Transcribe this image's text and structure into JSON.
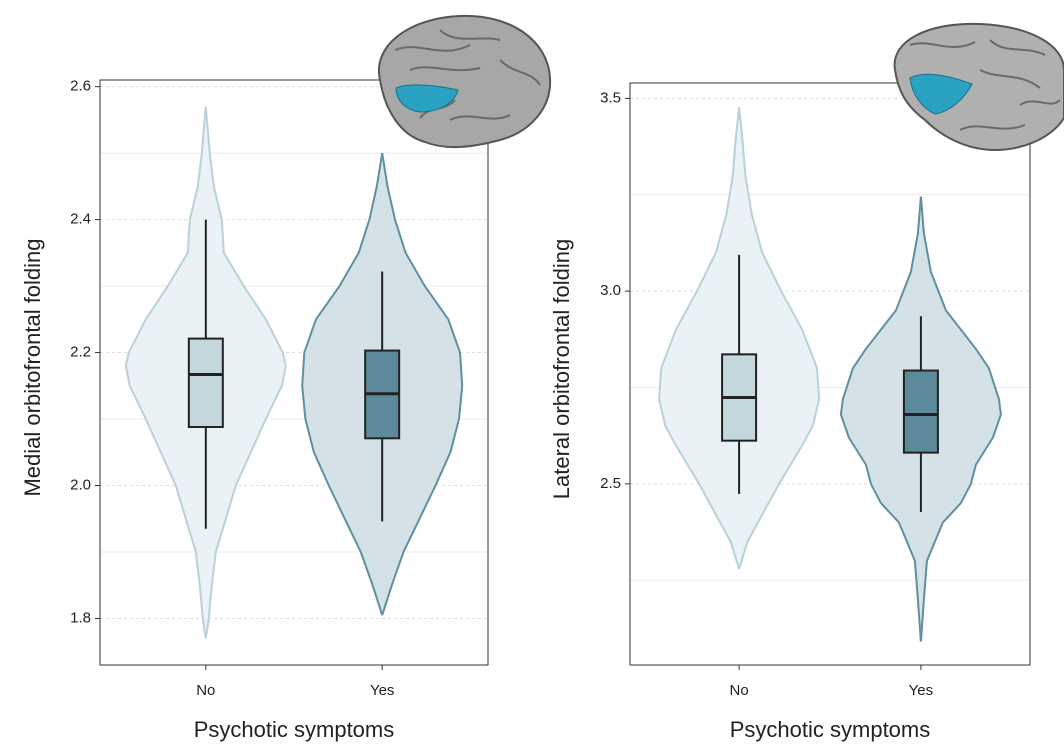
{
  "chart_data": [
    {
      "type": "violin",
      "y_label": "Medial orbitofrontal folding",
      "x_label": "Psychotic symptoms",
      "categories": [
        "No",
        "Yes"
      ],
      "ylim": [
        1.73,
        2.61
      ],
      "yticks": [
        1.8,
        {
          "value": 2,
          "label": "2.0"
        },
        2.2,
        2.4,
        2.6
      ],
      "minor_gridlines": [
        1.9,
        2.1,
        2.3,
        2.5
      ],
      "grid": true,
      "colors": [
        {
          "fill": "#eaf2f5",
          "stroke": "#b9d1d9",
          "box_fill": "#c4d7dd"
        },
        {
          "fill": "#d4e2e7",
          "stroke": "#5f8fa0",
          "box_fill": "#5c8a9b"
        }
      ],
      "boxes": [
        {
          "whisker_low": 1.935,
          "q1": 2.088,
          "median": 2.167,
          "q3": 2.221,
          "whisker_high": 2.4
        },
        {
          "whisker_low": 1.946,
          "q1": 2.071,
          "median": 2.138,
          "q3": 2.203,
          "whisker_high": 2.322
        }
      ],
      "violins": [
        {
          "y": [
            2.57,
            2.5,
            2.45,
            2.4,
            2.35,
            2.3,
            2.25,
            2.2,
            2.18,
            2.15,
            2.1,
            2.05,
            2,
            1.95,
            1.9,
            1.85,
            1.8,
            1.77
          ],
          "density": [
            0,
            4,
            8,
            16,
            18,
            38,
            60,
            77,
            80,
            76,
            60,
            45,
            30,
            20,
            10,
            6,
            3,
            0
          ]
        },
        {
          "y": [
            2.5,
            2.45,
            2.4,
            2.35,
            2.3,
            2.25,
            2.2,
            2.15,
            2.1,
            2.05,
            2,
            1.95,
            1.9,
            1.85,
            1.805
          ],
          "density": [
            0,
            5,
            12,
            22,
            40,
            62,
            73,
            75,
            72,
            64,
            50,
            35,
            20,
            9,
            0
          ]
        }
      ]
    },
    {
      "type": "violin",
      "y_label": "Lateral orbitofrontal folding",
      "x_label": "Psychotic symptoms",
      "categories": [
        "No",
        "Yes"
      ],
      "ylim": [
        2.03,
        3.54
      ],
      "yticks": [
        2.5,
        {
          "value": 3,
          "label": "3.0"
        },
        3.5
      ],
      "minor_gridlines": [
        2.25,
        2.75,
        3.25
      ],
      "grid": true,
      "colors": [
        {
          "fill": "#eaf2f5",
          "stroke": "#b9d1d9",
          "box_fill": "#c4d7dd"
        },
        {
          "fill": "#d4e2e7",
          "stroke": "#5f8fa0",
          "box_fill": "#5c8a9b"
        }
      ],
      "boxes": [
        {
          "whisker_low": 2.474,
          "q1": 2.612,
          "median": 2.724,
          "q3": 2.836,
          "whisker_high": 3.094
        },
        {
          "whisker_low": 2.427,
          "q1": 2.581,
          "median": 2.68,
          "q3": 2.794,
          "whisker_high": 2.935
        }
      ],
      "violins": [
        {
          "y": [
            3.477,
            3.4,
            3.3,
            3.2,
            3.1,
            3,
            2.9,
            2.8,
            2.72,
            2.65,
            2.6,
            2.5,
            2.4,
            2.35,
            2.279
          ],
          "density": [
            0,
            3,
            6,
            12,
            22,
            40,
            60,
            74,
            76,
            70,
            60,
            38,
            18,
            8,
            0
          ]
        },
        {
          "y": [
            3.245,
            3.15,
            3.05,
            2.95,
            2.85,
            2.8,
            2.72,
            2.68,
            2.62,
            2.55,
            2.5,
            2.45,
            2.4,
            2.3,
            2.2,
            2.091
          ],
          "density": [
            0,
            3,
            10,
            25,
            55,
            68,
            78,
            80,
            72,
            55,
            50,
            40,
            22,
            6,
            3,
            0
          ]
        }
      ]
    }
  ]
}
